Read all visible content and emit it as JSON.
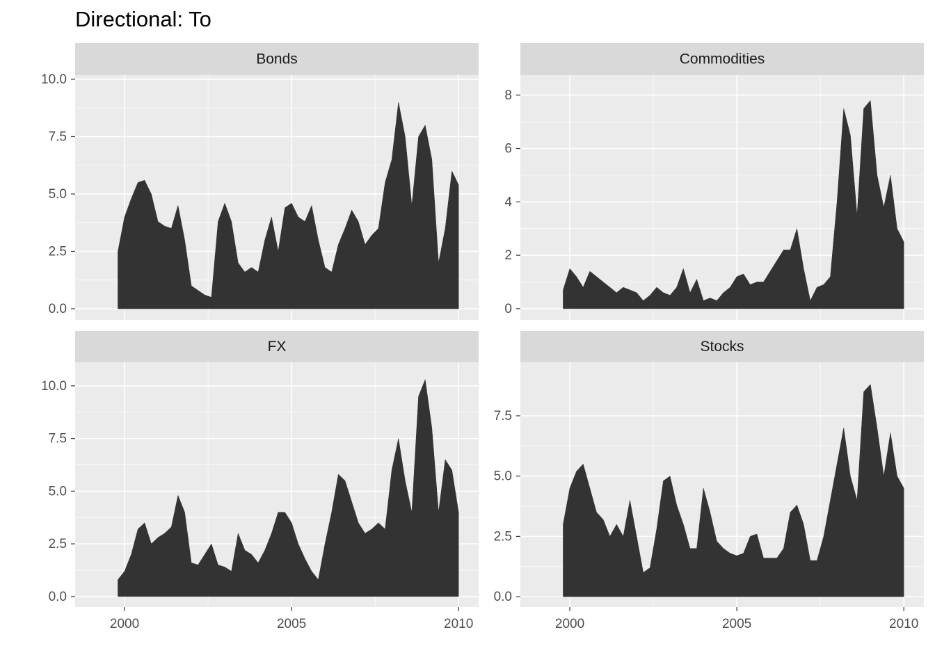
{
  "title": "Directional: To",
  "chart_data": [
    {
      "type": "area",
      "title": "Bonds",
      "color": "#333333",
      "grid": true,
      "x": [
        1999.8,
        2000,
        2000.2,
        2000.4,
        2000.6,
        2000.8,
        2001,
        2001.2,
        2001.4,
        2001.6,
        2001.8,
        2002,
        2002.2,
        2002.4,
        2002.6,
        2002.8,
        2003,
        2003.2,
        2003.4,
        2003.6,
        2003.8,
        2004,
        2004.2,
        2004.4,
        2004.6,
        2004.8,
        2005,
        2005.2,
        2005.4,
        2005.6,
        2005.8,
        2006,
        2006.2,
        2006.4,
        2006.6,
        2006.8,
        2007,
        2007.2,
        2007.4,
        2007.6,
        2007.8,
        2008,
        2008.2,
        2008.4,
        2008.6,
        2008.8,
        2009,
        2009.2,
        2009.4,
        2009.6,
        2009.8,
        2010
      ],
      "values": [
        2.5,
        4.0,
        4.8,
        5.5,
        5.6,
        5.0,
        3.8,
        3.6,
        3.5,
        4.5,
        3.0,
        1.0,
        0.8,
        0.6,
        0.5,
        3.8,
        4.6,
        3.8,
        2.0,
        1.6,
        1.8,
        1.6,
        3.0,
        4.0,
        2.5,
        4.4,
        4.6,
        4.0,
        3.8,
        4.5,
        3.0,
        1.8,
        1.6,
        2.8,
        3.5,
        4.3,
        3.8,
        2.8,
        3.2,
        3.5,
        5.5,
        6.5,
        9.0,
        7.5,
        4.5,
        7.5,
        8.0,
        6.5,
        2.0,
        3.5,
        6.0,
        5.4
      ],
      "xlim": [
        1998.52,
        2010.6
      ],
      "ylim": [
        -0.485,
        10.18
      ],
      "xticks": [
        2000,
        2005,
        2010
      ],
      "yticks": [
        {
          "value": 0,
          "label": "0.0"
        },
        2.5,
        {
          "value": 5,
          "label": "5.0"
        },
        7.5,
        {
          "value": 10,
          "label": "10.0"
        }
      ]
    },
    {
      "type": "area",
      "title": "Commodities",
      "color": "#333333",
      "grid": true,
      "x": [
        1999.8,
        2000,
        2000.2,
        2000.4,
        2000.6,
        2000.8,
        2001,
        2001.2,
        2001.4,
        2001.6,
        2001.8,
        2002,
        2002.2,
        2002.4,
        2002.6,
        2002.8,
        2003,
        2003.2,
        2003.4,
        2003.6,
        2003.8,
        2004,
        2004.2,
        2004.4,
        2004.6,
        2004.8,
        2005,
        2005.2,
        2005.4,
        2005.6,
        2005.8,
        2006,
        2006.2,
        2006.4,
        2006.6,
        2006.8,
        2007,
        2007.2,
        2007.4,
        2007.6,
        2007.8,
        2008,
        2008.2,
        2008.4,
        2008.6,
        2008.8,
        2009,
        2009.2,
        2009.4,
        2009.6,
        2009.8,
        2010
      ],
      "values": [
        0.7,
        1.5,
        1.2,
        0.8,
        1.4,
        1.2,
        1.0,
        0.8,
        0.6,
        0.8,
        0.7,
        0.6,
        0.3,
        0.5,
        0.8,
        0.6,
        0.5,
        0.8,
        1.5,
        0.6,
        1.1,
        0.3,
        0.4,
        0.3,
        0.6,
        0.8,
        1.2,
        1.3,
        0.9,
        1.0,
        1.0,
        1.4,
        1.8,
        2.2,
        2.2,
        3.0,
        1.5,
        0.3,
        0.8,
        0.9,
        1.2,
        4.0,
        7.5,
        6.5,
        3.5,
        7.5,
        7.8,
        5.0,
        3.8,
        5.0,
        3.0,
        2.5
      ],
      "xlim": [
        1998.52,
        2010.6
      ],
      "ylim": [
        -0.42,
        8.75
      ],
      "xticks": [
        2000,
        2005,
        2010
      ],
      "yticks": [
        0,
        2,
        4,
        6,
        8
      ]
    },
    {
      "type": "area",
      "title": "FX",
      "color": "#333333",
      "grid": true,
      "x": [
        1999.8,
        2000,
        2000.2,
        2000.4,
        2000.6,
        2000.8,
        2001,
        2001.2,
        2001.4,
        2001.6,
        2001.8,
        2002,
        2002.2,
        2002.4,
        2002.6,
        2002.8,
        2003,
        2003.2,
        2003.4,
        2003.6,
        2003.8,
        2004,
        2004.2,
        2004.4,
        2004.6,
        2004.8,
        2005,
        2005.2,
        2005.4,
        2005.6,
        2005.8,
        2006,
        2006.2,
        2006.4,
        2006.6,
        2006.8,
        2007,
        2007.2,
        2007.4,
        2007.6,
        2007.8,
        2008,
        2008.2,
        2008.4,
        2008.6,
        2008.8,
        2009,
        2009.2,
        2009.4,
        2009.6,
        2009.8,
        2010
      ],
      "values": [
        0.8,
        1.2,
        2.0,
        3.2,
        3.5,
        2.5,
        2.8,
        3.0,
        3.3,
        4.8,
        4.0,
        1.6,
        1.5,
        2.0,
        2.5,
        1.5,
        1.4,
        1.2,
        3.0,
        2.2,
        2.0,
        1.6,
        2.2,
        3.0,
        4.0,
        4.0,
        3.5,
        2.5,
        1.8,
        1.2,
        0.8,
        2.5,
        4.0,
        5.8,
        5.5,
        4.5,
        3.5,
        3.0,
        3.2,
        3.5,
        3.2,
        6.0,
        7.5,
        5.5,
        4.0,
        9.5,
        10.3,
        8.0,
        4.0,
        6.5,
        6.0,
        4.0
      ],
      "xlim": [
        1998.52,
        2010.6
      ],
      "ylim": [
        -0.5,
        11.12
      ],
      "xticks": [
        2000,
        2005,
        2010
      ],
      "yticks": [
        {
          "value": 0,
          "label": "0.0"
        },
        2.5,
        {
          "value": 5,
          "label": "5.0"
        },
        7.5,
        {
          "value": 10,
          "label": "10.0"
        }
      ]
    },
    {
      "type": "area",
      "title": "Stocks",
      "color": "#333333",
      "grid": true,
      "x": [
        1999.8,
        2000,
        2000.2,
        2000.4,
        2000.6,
        2000.8,
        2001,
        2001.2,
        2001.4,
        2001.6,
        2001.8,
        2002,
        2002.2,
        2002.4,
        2002.6,
        2002.8,
        2003,
        2003.2,
        2003.4,
        2003.6,
        2003.8,
        2004,
        2004.2,
        2004.4,
        2004.6,
        2004.8,
        2005,
        2005.2,
        2005.4,
        2005.6,
        2005.8,
        2006,
        2006.2,
        2006.4,
        2006.6,
        2006.8,
        2007,
        2007.2,
        2007.4,
        2007.6,
        2007.8,
        2008,
        2008.2,
        2008.4,
        2008.6,
        2008.8,
        2009,
        2009.2,
        2009.4,
        2009.6,
        2009.8,
        2010
      ],
      "values": [
        3.0,
        4.5,
        5.2,
        5.5,
        4.5,
        3.5,
        3.2,
        2.5,
        3.0,
        2.5,
        4.0,
        2.5,
        1.0,
        1.2,
        2.8,
        4.8,
        5.0,
        3.8,
        3.0,
        2.0,
        2.0,
        4.5,
        3.5,
        2.3,
        2.0,
        1.8,
        1.7,
        1.8,
        2.5,
        2.6,
        1.6,
        1.6,
        1.6,
        2.0,
        3.5,
        3.8,
        3.0,
        1.5,
        1.5,
        2.5,
        4.0,
        5.5,
        7.0,
        5.0,
        4.0,
        8.5,
        8.8,
        7.0,
        5.0,
        6.8,
        5.0,
        4.5
      ],
      "xlim": [
        1998.52,
        2010.6
      ],
      "ylim": [
        -0.43,
        9.72
      ],
      "xticks": [
        2000,
        2005,
        2010
      ],
      "yticks": [
        {
          "value": 0,
          "label": "0.0"
        },
        2.5,
        {
          "value": 5,
          "label": "5.0"
        },
        7.5
      ]
    }
  ]
}
